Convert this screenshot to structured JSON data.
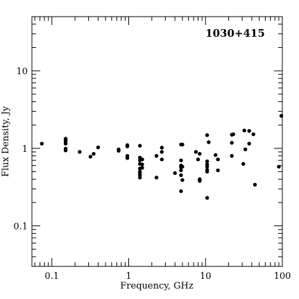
{
  "chart_data": {
    "type": "scatter",
    "title": "",
    "annotation": "1030+415",
    "xlabel": "Frequency, GHz",
    "ylabel": "Flux Density, Jy",
    "x_scale": "log",
    "y_scale": "log",
    "xlim": [
      0.055,
      100
    ],
    "ylim": [
      0.03,
      50
    ],
    "grid": false,
    "x_ticks": [
      {
        "value": 0.1,
        "label": "0.1"
      },
      {
        "value": 1,
        "label": "1"
      },
      {
        "value": 10,
        "label": "10"
      },
      {
        "value": 100,
        "label": "100"
      }
    ],
    "y_ticks": [
      {
        "value": 0.1,
        "label": "0.1"
      },
      {
        "value": 1,
        "label": "1"
      },
      {
        "value": 10,
        "label": "10"
      }
    ],
    "marker_color": "#000000",
    "points": [
      [
        0.074,
        1.15
      ],
      [
        0.151,
        1.33
      ],
      [
        0.151,
        1.28
      ],
      [
        0.151,
        1.22
      ],
      [
        0.151,
        1.15
      ],
      [
        0.151,
        0.99
      ],
      [
        0.151,
        0.94
      ],
      [
        0.23,
        0.9
      ],
      [
        0.318,
        0.78
      ],
      [
        0.35,
        0.85
      ],
      [
        0.4,
        1.03
      ],
      [
        0.74,
        0.97
      ],
      [
        0.74,
        0.93
      ],
      [
        0.96,
        1.1
      ],
      [
        0.96,
        1.06
      ],
      [
        0.96,
        0.8
      ],
      [
        0.96,
        0.75
      ],
      [
        1.4,
        1.08
      ],
      [
        1.4,
        0.76
      ],
      [
        1.4,
        0.7
      ],
      [
        1.4,
        0.63
      ],
      [
        1.4,
        0.55
      ],
      [
        1.4,
        0.5
      ],
      [
        1.4,
        0.47
      ],
      [
        1.4,
        0.45
      ],
      [
        1.4,
        0.42
      ],
      [
        1.5,
        0.72
      ],
      [
        1.5,
        0.62
      ],
      [
        1.5,
        0.56
      ],
      [
        2.3,
        0.8
      ],
      [
        2.3,
        0.42
      ],
      [
        2.7,
        1.02
      ],
      [
        2.7,
        0.9
      ],
      [
        2.7,
        0.72
      ],
      [
        4.0,
        0.48
      ],
      [
        4.8,
        1.12
      ],
      [
        4.8,
        0.7
      ],
      [
        4.8,
        0.6
      ],
      [
        4.8,
        0.57
      ],
      [
        4.8,
        0.52
      ],
      [
        4.8,
        0.45
      ],
      [
        4.8,
        0.28
      ],
      [
        5.0,
        1.12
      ],
      [
        5.0,
        0.58
      ],
      [
        5.0,
        0.39
      ],
      [
        7.5,
        0.9
      ],
      [
        8.0,
        0.72
      ],
      [
        8.4,
        0.85
      ],
      [
        8.4,
        0.4
      ],
      [
        8.4,
        0.38
      ],
      [
        10.5,
        1.48
      ],
      [
        10.5,
        0.68
      ],
      [
        10.5,
        0.62
      ],
      [
        10.5,
        0.58
      ],
      [
        10.5,
        0.53
      ],
      [
        10.5,
        0.5
      ],
      [
        10.5,
        0.23
      ],
      [
        11.0,
        1.2
      ],
      [
        13.5,
        0.82
      ],
      [
        14.5,
        0.72
      ],
      [
        14.5,
        0.52
      ],
      [
        22,
        1.5
      ],
      [
        22,
        1.18
      ],
      [
        22,
        0.8
      ],
      [
        23,
        1.52
      ],
      [
        31,
        0.63
      ],
      [
        32,
        1.7
      ],
      [
        33,
        0.97
      ],
      [
        37,
        1.68
      ],
      [
        37,
        1.15
      ],
      [
        42,
        1.52
      ],
      [
        44,
        0.34
      ],
      [
        90,
        0.58
      ],
      [
        97,
        2.63
      ]
    ]
  }
}
